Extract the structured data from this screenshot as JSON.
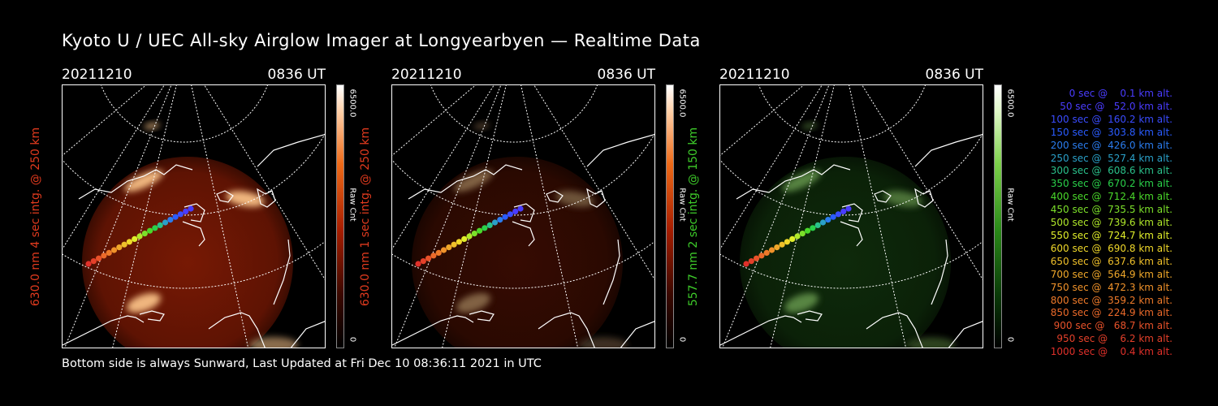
{
  "title": "Kyoto U / UEC All-sky Airglow Imager at Longyearbyen — Realtime Data",
  "footer": "Bottom side is always Sunward, Last Updated at Fri Dec 10 08:36:11 2021 in UTC",
  "panels": [
    {
      "date": "20211210",
      "time": "0836 UT",
      "ylabel": "630.0 nm 4 sec intg. @ 250 km",
      "ylabel_color": "#e03a1e",
      "cb_max": "6500.0",
      "cb_zero": "0",
      "cb_unit": "Raw Cnt",
      "scheme": "red",
      "brightness": 1.0
    },
    {
      "date": "20211210",
      "time": "0836 UT",
      "ylabel": "630.0 nm 1 sec intg. @ 250 km",
      "ylabel_color": "#e03a1e",
      "cb_max": "6500.0",
      "cb_zero": "0",
      "cb_unit": "Raw Cnt",
      "scheme": "red",
      "brightness": 0.45
    },
    {
      "date": "20211210",
      "time": "0836 UT",
      "ylabel": "557.7 nm 2 sec intg. @ 150 km",
      "ylabel_color": "#3ecc2a",
      "cb_max": "6500.0",
      "cb_zero": "0",
      "cb_unit": "Raw Cnt",
      "scheme": "green",
      "brightness": 0.5
    }
  ],
  "legend": [
    {
      "text": "   0 sec @    0.1 km alt.",
      "color": "#4a3cff"
    },
    {
      "text": "  50 sec @   52.0 km alt.",
      "color": "#4a3cff"
    },
    {
      "text": " 100 sec @  160.2 km alt.",
      "color": "#3a4cff"
    },
    {
      "text": " 150 sec @  303.8 km alt.",
      "color": "#2a5cff"
    },
    {
      "text": " 200 sec @  426.0 km alt.",
      "color": "#2a7cee"
    },
    {
      "text": " 250 sec @  527.4 km alt.",
      "color": "#2aa0c8"
    },
    {
      "text": " 300 sec @  608.6 km alt.",
      "color": "#2ac08a"
    },
    {
      "text": " 350 sec @  670.2 km alt.",
      "color": "#2ad04a"
    },
    {
      "text": " 400 sec @  712.4 km alt.",
      "color": "#4ad82a"
    },
    {
      "text": " 450 sec @  735.5 km alt.",
      "color": "#7ce02a"
    },
    {
      "text": " 500 sec @  739.6 km alt.",
      "color": "#b0e82a"
    },
    {
      "text": " 550 sec @  724.7 km alt.",
      "color": "#e0ee2a"
    },
    {
      "text": " 600 sec @  690.8 km alt.",
      "color": "#f0d82a"
    },
    {
      "text": " 650 sec @  637.6 km alt.",
      "color": "#f0c02a"
    },
    {
      "text": " 700 sec @  564.9 km alt.",
      "color": "#f0a82a"
    },
    {
      "text": " 750 sec @  472.3 km alt.",
      "color": "#f0922a"
    },
    {
      "text": " 800 sec @  359.2 km alt.",
      "color": "#ee7a2a"
    },
    {
      "text": " 850 sec @  224.9 km alt.",
      "color": "#ec6a2a"
    },
    {
      "text": " 900 sec @   68.7 km alt.",
      "color": "#e8522a"
    },
    {
      "text": " 950 sec @    6.2 km alt.",
      "color": "#e4402a"
    },
    {
      "text": "1000 sec @    0.4 km alt.",
      "color": "#e0302a"
    }
  ]
}
